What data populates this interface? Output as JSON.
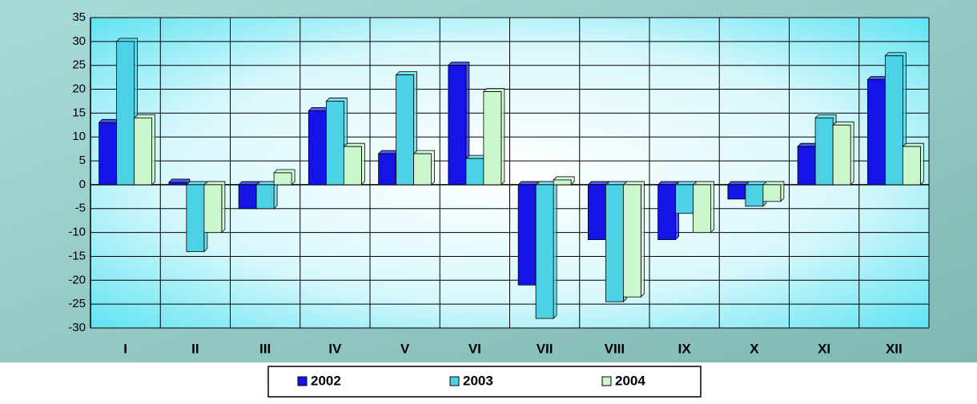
{
  "chart_data": {
    "type": "bar",
    "categories": [
      "I",
      "II",
      "III",
      "IV",
      "V",
      "VI",
      "VII",
      "VIII",
      "IX",
      "X",
      "XI",
      "XII"
    ],
    "series": [
      {
        "name": "2002",
        "color": "#1414e6",
        "values": [
          13,
          0.5,
          -5,
          15.5,
          6.5,
          25,
          -21,
          -11.5,
          -11.5,
          -3,
          8,
          22
        ]
      },
      {
        "name": "2003",
        "color": "#4cd2e4",
        "values": [
          30,
          -14,
          -5,
          17.5,
          23,
          5.5,
          -28,
          -24.5,
          -6,
          -4.5,
          14,
          27
        ]
      },
      {
        "name": "2004",
        "color": "#ccf7cc",
        "values": [
          14,
          -10,
          2.5,
          8,
          6.5,
          19.5,
          1,
          -23.5,
          -10,
          -3.5,
          12.5,
          8
        ]
      }
    ],
    "ylim": [
      -30,
      35
    ],
    "yticks": [
      -30,
      -25,
      -20,
      -15,
      -10,
      -5,
      0,
      5,
      10,
      15,
      20,
      25,
      30,
      35
    ],
    "grid": true,
    "legend": "bottom"
  }
}
